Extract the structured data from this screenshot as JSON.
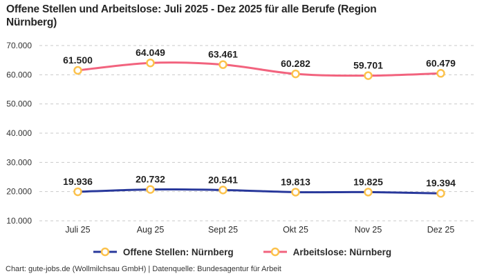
{
  "title": "Offene Stellen und Arbeitslose: Juli 2025 - Dez 2025 für alle Berufe (Region Nürnberg)",
  "footer": "Chart: gute-jobs.de (Wollmilchsau GmbH) | Datenquelle: Bundesagentur für Arbeit",
  "colors": {
    "grid": "#c9c9c9",
    "marker_ring": "#fcc24c",
    "marker_fill": "#ffffff",
    "data_label": "#1f1f1f",
    "axis_text": "#333333",
    "title_text": "#262626"
  },
  "chart_data": {
    "type": "line",
    "title": "Offene Stellen und Arbeitslose: Juli 2025 - Dez 2025 für alle Berufe (Region Nürnberg)",
    "xlabel": "",
    "ylabel": "",
    "categories": [
      "Juli 25",
      "Aug 25",
      "Sept 25",
      "Okt 25",
      "Nov 25",
      "Dez 25"
    ],
    "ylim": [
      10000,
      70000
    ],
    "y_tick_step": 10000,
    "y_ticks": [
      "70.000",
      "60.000",
      "50.000",
      "40.000",
      "30.000",
      "20.000",
      "10.000"
    ],
    "grid": "horizontal-dashed",
    "legend_position": "bottom",
    "series": [
      {
        "name": "Offene Stellen: Nürnberg",
        "color": "#28389b",
        "values": [
          19936,
          20732,
          20541,
          19813,
          19825,
          19394
        ],
        "labels": [
          "19.936",
          "20.732",
          "20.541",
          "19.813",
          "19.825",
          "19.394"
        ]
      },
      {
        "name": "Arbeitslose: Nürnberg",
        "color": "#f2637e",
        "values": [
          61500,
          64049,
          63461,
          60282,
          59701,
          60479
        ],
        "labels": [
          "61.500",
          "64.049",
          "63.461",
          "60.282",
          "59.701",
          "60.479"
        ]
      }
    ]
  }
}
